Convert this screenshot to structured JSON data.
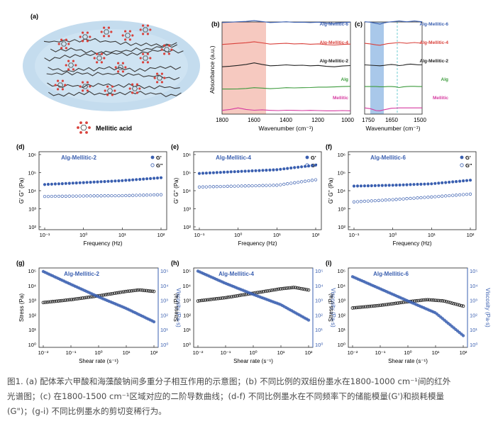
{
  "panel_a": {
    "label": "(a)",
    "legend_label": "Mellitic acid"
  },
  "ftir": {
    "panel_b_label": "(b)",
    "panel_c_label": "(c)",
    "ylabel": "Absorbance (a.u.)",
    "xlabel": "Wavenumber (cm⁻¹)",
    "xlabel_c": "Wavenumber (cm⁻¹)",
    "b_ticks": [
      "1800",
      "1600",
      "1400",
      "1200",
      "1000"
    ],
    "c_ticks": [
      "1750",
      "1650",
      "1500"
    ],
    "series": [
      {
        "name": "Alg-Mellitic-6",
        "color": "#3a5fb0"
      },
      {
        "name": "Alg-Mellitic-4",
        "color": "#d9413b"
      },
      {
        "name": "Alg-Mellitic-2",
        "color": "#222222"
      },
      {
        "name": "Alg",
        "color": "#3d9b3d"
      },
      {
        "name": "Mellitic",
        "color": "#d63aa0"
      }
    ]
  },
  "chart_data": [
    {
      "type": "line",
      "panel": "(b)",
      "xlabel": "Wavenumber (cm⁻¹)",
      "ylabel": "Absorbance (a.u.)",
      "xlim": [
        1800,
        1000
      ],
      "highlight_range": [
        1800,
        1500
      ],
      "series": [
        {
          "name": "Alg-Mellitic-6",
          "x": [
            1800,
            1750,
            1700,
            1650,
            1600,
            1550,
            1500,
            1450,
            1400,
            1350,
            1300,
            1250,
            1200,
            1150,
            1100,
            1050,
            1000
          ],
          "y": [
            0.78,
            0.8,
            0.82,
            0.84,
            0.88,
            0.83,
            0.78,
            0.8,
            0.82,
            0.79,
            0.8,
            0.78,
            0.8,
            0.76,
            0.74,
            0.78,
            0.8
          ]
        },
        {
          "name": "Alg-Mellitic-4",
          "x": [
            1800,
            1750,
            1700,
            1650,
            1600,
            1550,
            1500,
            1450,
            1400,
            1350,
            1300,
            1250,
            1200,
            1150,
            1100,
            1050,
            1000
          ],
          "y": [
            0.6,
            0.63,
            0.66,
            0.69,
            0.74,
            0.68,
            0.62,
            0.64,
            0.66,
            0.63,
            0.64,
            0.61,
            0.63,
            0.59,
            0.57,
            0.6,
            0.62
          ]
        },
        {
          "name": "Alg-Mellitic-2",
          "x": [
            1800,
            1750,
            1700,
            1650,
            1600,
            1550,
            1500,
            1450,
            1400,
            1350,
            1300,
            1250,
            1200,
            1150,
            1100,
            1050,
            1000
          ],
          "y": [
            0.4,
            0.43,
            0.47,
            0.52,
            0.6,
            0.52,
            0.45,
            0.47,
            0.5,
            0.47,
            0.48,
            0.45,
            0.47,
            0.42,
            0.4,
            0.44,
            0.46
          ]
        },
        {
          "name": "Alg",
          "x": [
            1800,
            1750,
            1700,
            1650,
            1600,
            1550,
            1500,
            1450,
            1400,
            1350,
            1300,
            1250,
            1200,
            1150,
            1100,
            1050,
            1000
          ],
          "y": [
            0.2,
            0.2,
            0.21,
            0.23,
            0.27,
            0.25,
            0.22,
            0.24,
            0.27,
            0.26,
            0.27,
            0.28,
            0.3,
            0.3,
            0.31,
            0.33,
            0.34
          ]
        },
        {
          "name": "Mellitic",
          "x": [
            1800,
            1750,
            1700,
            1650,
            1600,
            1550,
            1500,
            1450,
            1400,
            1350,
            1300,
            1250,
            1200,
            1150,
            1100,
            1050,
            1000
          ],
          "y": [
            0.05,
            0.1,
            0.18,
            0.1,
            0.06,
            0.08,
            0.05,
            0.04,
            0.06,
            0.05,
            0.04,
            0.05,
            0.04,
            0.03,
            0.03,
            0.04,
            0.03
          ]
        }
      ]
    },
    {
      "type": "line",
      "panel": "(c)",
      "xlabel": "Wavenumber (cm⁻¹)",
      "xlim": [
        1800,
        1500
      ],
      "highlight_range": [
        1760,
        1710
      ],
      "dashed_line_x": 1630,
      "series": [
        {
          "name": "Alg-Mellitic-6",
          "x": [
            1800,
            1770,
            1740,
            1720,
            1700,
            1680,
            1660,
            1640,
            1620,
            1600,
            1580,
            1560,
            1540,
            1520,
            1500
          ],
          "y": [
            0.82,
            0.8,
            0.74,
            0.7,
            0.76,
            0.8,
            0.82,
            0.84,
            0.86,
            0.84,
            0.82,
            0.84,
            0.86,
            0.84,
            0.82
          ]
        },
        {
          "name": "Alg-Mellitic-4",
          "x": [
            1800,
            1770,
            1740,
            1720,
            1700,
            1680,
            1660,
            1640,
            1620,
            1600,
            1580,
            1560,
            1540,
            1520,
            1500
          ],
          "y": [
            0.66,
            0.63,
            0.58,
            0.56,
            0.6,
            0.64,
            0.66,
            0.68,
            0.7,
            0.68,
            0.66,
            0.68,
            0.7,
            0.68,
            0.67
          ]
        },
        {
          "name": "Alg-Mellitic-2",
          "x": [
            1800,
            1770,
            1740,
            1720,
            1700,
            1680,
            1660,
            1640,
            1620,
            1600,
            1580,
            1560,
            1540,
            1520,
            1500
          ],
          "y": [
            0.5,
            0.48,
            0.46,
            0.45,
            0.47,
            0.5,
            0.52,
            0.5,
            0.46,
            0.48,
            0.52,
            0.54,
            0.52,
            0.5,
            0.5
          ]
        },
        {
          "name": "Alg",
          "x": [
            1800,
            1770,
            1740,
            1720,
            1700,
            1680,
            1660,
            1640,
            1620,
            1600,
            1580,
            1560,
            1540,
            1520,
            1500
          ],
          "y": [
            0.33,
            0.33,
            0.33,
            0.32,
            0.32,
            0.33,
            0.33,
            0.32,
            0.28,
            0.31,
            0.33,
            0.34,
            0.34,
            0.33,
            0.33
          ]
        },
        {
          "name": "Mellitic",
          "x": [
            1800,
            1770,
            1740,
            1720,
            1700,
            1680,
            1660,
            1640,
            1620,
            1600,
            1580,
            1560,
            1540,
            1520,
            1500
          ],
          "y": [
            0.18,
            0.14,
            0.04,
            0.03,
            0.08,
            0.12,
            0.16,
            0.17,
            0.18,
            0.18,
            0.18,
            0.18,
            0.18,
            0.18,
            0.18
          ]
        }
      ]
    },
    {
      "type": "scatter",
      "panel": "(d)",
      "title": "Alg-Mellitic-2",
      "xlabel": "Frequency (Hz)",
      "ylabel": "G' G'' (Pa)",
      "log_x": true,
      "log_y": true,
      "xlim": [
        0.1,
        100
      ],
      "ylim": [
        100,
        1000000
      ],
      "series": [
        {
          "name": "G'",
          "x": [
            0.1,
            1,
            10,
            100
          ],
          "y": [
            22000,
            28000,
            36000,
            52000
          ]
        },
        {
          "name": "G''",
          "x": [
            0.1,
            1,
            10,
            100
          ],
          "y": [
            4800,
            5100,
            5300,
            6000
          ]
        }
      ]
    },
    {
      "type": "scatter",
      "panel": "(e)",
      "title": "Alg-Mellitic-4",
      "xlabel": "Frequency (Hz)",
      "ylabel": "G' G'' (Pa)",
      "log_x": true,
      "log_y": true,
      "xlim": [
        0.1,
        100
      ],
      "ylim": [
        100,
        1000000
      ],
      "series": [
        {
          "name": "G'",
          "x": [
            0.1,
            1,
            10,
            100
          ],
          "y": [
            90000,
            115000,
            145000,
            260000
          ]
        },
        {
          "name": "G''",
          "x": [
            0.1,
            1,
            10,
            100
          ],
          "y": [
            16000,
            18000,
            20000,
            40000
          ]
        }
      ]
    },
    {
      "type": "scatter",
      "panel": "(f)",
      "title": "Alg-Mellitic-6",
      "xlabel": "Frequency (Hz)",
      "ylabel": "G' G'' (Pa)",
      "log_x": true,
      "log_y": true,
      "xlim": [
        0.1,
        100
      ],
      "ylim": [
        100,
        1000000
      ],
      "series": [
        {
          "name": "G'",
          "x": [
            0.1,
            1,
            10,
            100
          ],
          "y": [
            18000,
            20000,
            24000,
            38000
          ]
        },
        {
          "name": "G''",
          "x": [
            0.1,
            1,
            10,
            100
          ],
          "y": [
            2400,
            3200,
            4500,
            6500
          ]
        }
      ]
    },
    {
      "type": "scatter",
      "panel": "(g)",
      "title": "Alg-Mellitic-2",
      "xlabel": "Shear rate (s⁻¹)",
      "ylabel": "Stress (Pa)",
      "y2label": "Viscosity (Pa·s)",
      "log_x": true,
      "log_y": true,
      "xlim": [
        0.01,
        100
      ],
      "ylim": [
        1,
        100000
      ],
      "y2lim": [
        1,
        100000
      ],
      "series": [
        {
          "name": "Stress",
          "axis": "left",
          "x": [
            0.01,
            0.1,
            1,
            10,
            30,
            100
          ],
          "y": [
            700,
            1100,
            2000,
            4000,
            5000,
            4000
          ]
        },
        {
          "name": "Viscosity",
          "axis": "right",
          "x": [
            0.01,
            0.1,
            1,
            10,
            100
          ],
          "y": [
            90000,
            12000,
            1700,
            280,
            35
          ]
        }
      ]
    },
    {
      "type": "scatter",
      "panel": "(h)",
      "title": "Alg-Mellitic-4",
      "xlabel": "Shear rate (s⁻¹)",
      "ylabel": "Stress (Pa)",
      "y2label": "Viscosity (Pa·s)",
      "log_x": true,
      "log_y": true,
      "xlim": [
        0.01,
        100
      ],
      "ylim": [
        1,
        100000
      ],
      "y2lim": [
        1,
        100000
      ],
      "series": [
        {
          "name": "Stress",
          "axis": "left",
          "x": [
            0.01,
            0.1,
            1,
            10,
            30,
            100
          ],
          "y": [
            900,
            1500,
            3000,
            6000,
            7500,
            5000
          ]
        },
        {
          "name": "Viscosity",
          "axis": "right",
          "x": [
            0.01,
            0.1,
            1,
            10,
            100
          ],
          "y": [
            95000,
            14000,
            2500,
            500,
            45
          ]
        }
      ]
    },
    {
      "type": "scatter",
      "panel": "(i)",
      "title": "Alg-Mellitic-6",
      "xlabel": "Shear rate (s⁻¹)",
      "ylabel": "Stress (Pa)",
      "y2label": "Viscosity (Pa·s)",
      "log_x": true,
      "log_y": true,
      "xlim": [
        0.01,
        100
      ],
      "ylim": [
        1,
        100000
      ],
      "y2lim": [
        1,
        100000
      ],
      "series": [
        {
          "name": "Stress",
          "axis": "left",
          "x": [
            0.01,
            0.1,
            1,
            5,
            20,
            100
          ],
          "y": [
            300,
            450,
            800,
            1100,
            900,
            400
          ]
        },
        {
          "name": "Viscosity",
          "axis": "right",
          "x": [
            0.01,
            0.1,
            1,
            10,
            100
          ],
          "y": [
            40000,
            6000,
            900,
            140,
            4
          ]
        }
      ]
    }
  ],
  "rheo_labels": {
    "freq_xlabel": "Frequency (Hz)",
    "freq_ylabel": "G' G'' (Pa)",
    "g_prime": "G'",
    "g_double": "G''",
    "shear_xlabel": "Shear rate (s⁻¹)",
    "stress_ylabel": "Stress (Pa)",
    "visc_ylabel": "Viscosity (Pa·s)",
    "d_ticks_x": [
      "10⁻¹",
      "10⁰",
      "10¹",
      "10²"
    ],
    "d_ticks_y": [
      "10⁶",
      "10⁵",
      "10⁴",
      "10³",
      "10²"
    ],
    "g_ticks_x": [
      "10⁻²",
      "10⁻¹",
      "10⁰",
      "10¹",
      "10²"
    ],
    "g_ticks_y": [
      "10⁵",
      "10⁴",
      "10³",
      "10²",
      "10¹",
      "10⁰"
    ],
    "g_ticks_y2": [
      "10⁵",
      "10⁴",
      "10³",
      "10²",
      "10¹",
      "10⁰"
    ]
  },
  "colors": {
    "blue": "#3a5fb0",
    "black": "#222222",
    "pink_band": "#f6c9c0",
    "blue_band": "#a9c8ea",
    "gel_blob": "#c4dcee"
  },
  "caption": {
    "line1": "图1. (a) 配体苯六甲酸和海藻酸钠间多重分子相互作用的示意图；(b) 不同比例的双组份墨水在1800-1000 cm⁻¹间的红外",
    "line2": "光谱图；(c) 在1800-1500 cm⁻¹区域对应的二阶导数曲线；(d-f) 不同比例墨水在不同频率下的储能模量(G')和损耗模量",
    "line3": "(G\")；(g-i) 不同比例墨水的剪切变稀行为。"
  }
}
